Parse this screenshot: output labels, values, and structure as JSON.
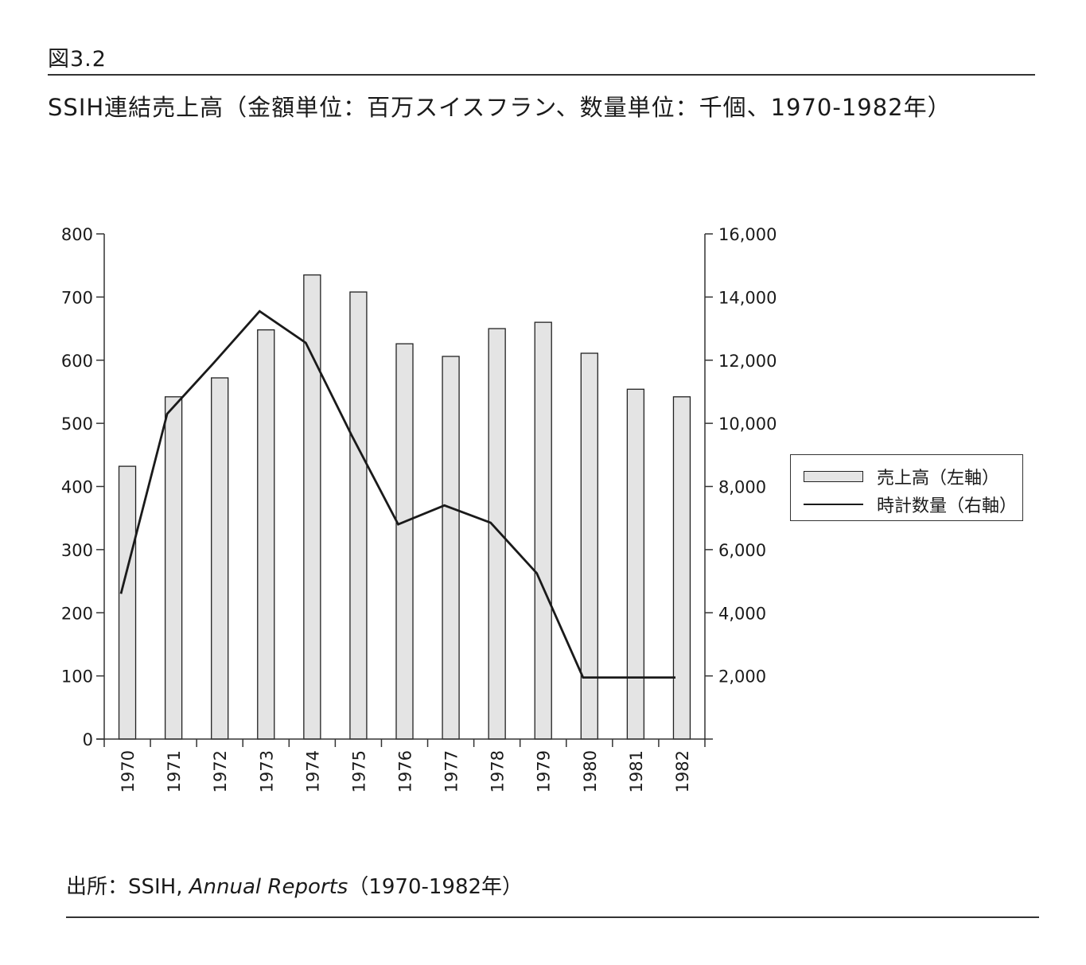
{
  "figure_number": "図3.2",
  "title": "SSIH連結売上高（金額単位：百万スイスフラン、数量単位：千個、1970-1982年）",
  "source": {
    "prefix": "出所：SSIH, ",
    "italic": "Annual Reports",
    "suffix": "（1970-1982年）"
  },
  "legend": {
    "bar_label": "売上高（左軸）",
    "line_label": "時計数量（右軸）"
  },
  "colors": {
    "bar_fill": "#e4e4e4",
    "bar_stroke": "#222222",
    "line": "#1a1a1a",
    "axis": "#333333"
  },
  "chart_data": {
    "type": "bar",
    "categories": [
      "1970",
      "1971",
      "1972",
      "1973",
      "1974",
      "1975",
      "1976",
      "1977",
      "1978",
      "1979",
      "1980",
      "1981",
      "1982"
    ],
    "series": [
      {
        "name": "売上高（左軸）",
        "type": "bar",
        "axis": "left",
        "values": [
          432,
          542,
          572,
          648,
          735,
          708,
          626,
          606,
          650,
          660,
          611,
          554,
          542
        ]
      },
      {
        "name": "時計数量（右軸）",
        "type": "line",
        "axis": "right",
        "values": [
          4600,
          10300,
          11900,
          13550,
          12550,
          9600,
          6800,
          7400,
          6850,
          5250,
          1950,
          1950,
          1950
        ]
      }
    ],
    "left_axis": {
      "ylim": [
        0,
        800
      ],
      "ticks": [
        0,
        100,
        200,
        300,
        400,
        500,
        600,
        700,
        800
      ],
      "tick_labels": [
        "0",
        "100",
        "200",
        "300",
        "400",
        "500",
        "600",
        "700",
        "800"
      ]
    },
    "right_axis": {
      "ylim": [
        0,
        16000
      ],
      "ticks": [
        2000,
        4000,
        6000,
        8000,
        10000,
        12000,
        14000,
        16000
      ],
      "tick_labels": [
        "2,000",
        "4,000",
        "6,000",
        "8,000",
        "10,000",
        "12,000",
        "14,000",
        "16,000"
      ]
    },
    "xlabel": "",
    "ylabel": "",
    "grid": false,
    "legend_position": "right"
  }
}
